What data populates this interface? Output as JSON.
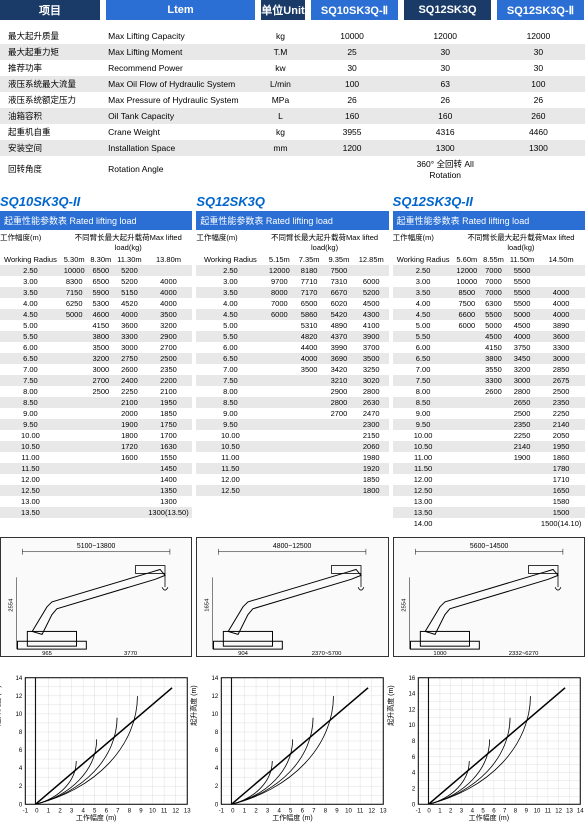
{
  "header": {
    "cells": [
      {
        "label": "项目",
        "bg": "dark",
        "w": 100
      },
      {
        "label": "",
        "bg": "gap",
        "w": 6
      },
      {
        "label": "Ltem",
        "bg": "blue",
        "w": 149
      },
      {
        "label": "",
        "bg": "gap",
        "w": 6
      },
      {
        "label": "单位Unit",
        "bg": "dark",
        "w": 44
      },
      {
        "label": "",
        "bg": "gap",
        "w": 6
      },
      {
        "label": "SQ10SK3Q-Ⅱ",
        "bg": "blue",
        "w": 87
      },
      {
        "label": "",
        "bg": "gap",
        "w": 6
      },
      {
        "label": "SQ12SK3Q",
        "bg": "dark",
        "w": 87
      },
      {
        "label": "",
        "bg": "gap",
        "w": 6
      },
      {
        "label": "SQ12SK3Q-Ⅱ",
        "bg": "blue",
        "w": 87
      }
    ]
  },
  "spec": {
    "rows": [
      {
        "cn": "最大起升质量",
        "en": "Max Lifting Capacity",
        "u": "kg",
        "v1": "10000",
        "v2": "12000",
        "v3": "12000"
      },
      {
        "cn": "最大起重力矩",
        "en": "Max Lifting Moment",
        "u": "T.M",
        "v1": "25",
        "v2": "30",
        "v3": "30"
      },
      {
        "cn": "推荐功率",
        "en": "Recommend Power",
        "u": "kw",
        "v1": "30",
        "v2": "30",
        "v3": "30"
      },
      {
        "cn": "液压系统最大流量",
        "en": "Max Oil Flow of Hydraulic System",
        "u": "L/min",
        "v1": "100",
        "v2": "63",
        "v3": "100"
      },
      {
        "cn": "液压系统额定压力",
        "en": "Max Pressure of Hydraulic System",
        "u": "MPa",
        "v1": "26",
        "v2": "26",
        "v3": "26"
      },
      {
        "cn": "油箱容积",
        "en": "Oil Tank Capacity",
        "u": "L",
        "v1": "160",
        "v2": "160",
        "v3": "260"
      },
      {
        "cn": "起重机自重",
        "en": "Crane Weight",
        "u": "kg",
        "v1": "3955",
        "v2": "4316",
        "v3": "4460"
      },
      {
        "cn": "安装空间",
        "en": "Installation Space",
        "u": "mm",
        "v1": "1200",
        "v2": "1300",
        "v3": "1300"
      },
      {
        "cn": "回转角度",
        "en": "Rotation Angle",
        "u": "",
        "v1": "",
        "v2": "360° 全回转 All Rotation",
        "v3": ""
      }
    ]
  },
  "models": [
    {
      "title": "SQ10SK3Q-II",
      "loadHeader": "起重性能参数表 Rated lifting load",
      "subL": "工作幅度(m)",
      "subR": "不同臂长最大起升载荷Max lifted load(kg)",
      "wr": "Working Radius",
      "cols": [
        "5.30m",
        "8.30m",
        "11.30m",
        "13.80m"
      ],
      "rows": [
        [
          "2.50",
          "10000",
          "6500",
          "5200",
          ""
        ],
        [
          "3.00",
          "8300",
          "6500",
          "5200",
          "4000"
        ],
        [
          "3.50",
          "7150",
          "5900",
          "5150",
          "4000"
        ],
        [
          "4.00",
          "6250",
          "5300",
          "4520",
          "4000"
        ],
        [
          "4.50",
          "5000",
          "4600",
          "4000",
          "3500"
        ],
        [
          "5.00",
          "",
          "4150",
          "3600",
          "3200"
        ],
        [
          "5.50",
          "",
          "3800",
          "3300",
          "2900"
        ],
        [
          "6.00",
          "",
          "3500",
          "3000",
          "2700"
        ],
        [
          "6.50",
          "",
          "3200",
          "2750",
          "2500"
        ],
        [
          "7.00",
          "",
          "3000",
          "2600",
          "2350"
        ],
        [
          "7.50",
          "",
          "2700",
          "2400",
          "2200"
        ],
        [
          "8.00",
          "",
          "2500",
          "2250",
          "2100"
        ],
        [
          "8.50",
          "",
          "",
          "2100",
          "1950"
        ],
        [
          "9.00",
          "",
          "",
          "2000",
          "1850"
        ],
        [
          "9.50",
          "",
          "",
          "1900",
          "1750"
        ],
        [
          "10.00",
          "",
          "",
          "1800",
          "1700"
        ],
        [
          "10.50",
          "",
          "",
          "1720",
          "1630"
        ],
        [
          "11.00",
          "",
          "",
          "1600",
          "1550"
        ],
        [
          "11.50",
          "",
          "",
          "",
          "1450"
        ],
        [
          "12.00",
          "",
          "",
          "",
          "1400"
        ],
        [
          "12.50",
          "",
          "",
          "",
          "1350"
        ],
        [
          "13.00",
          "",
          "",
          "",
          "1300"
        ],
        [
          "13.50",
          "",
          "",
          "",
          "1300(13.50)"
        ]
      ]
    },
    {
      "title": "SQ12SK3Q",
      "loadHeader": "起重性能参数表 Rated lifting load",
      "subL": "工作幅度(m)",
      "subR": "不同臂长最大起升载荷Max lifted load(kg)",
      "wr": "Working Radius",
      "cols": [
        "5.15m",
        "7.35m",
        "9.35m",
        "12.85m"
      ],
      "rows": [
        [
          "2.50",
          "12000",
          "8180",
          "7500",
          ""
        ],
        [
          "3.00",
          "9700",
          "7710",
          "7310",
          "6000"
        ],
        [
          "3.50",
          "8000",
          "7170",
          "6670",
          "5200"
        ],
        [
          "4.00",
          "7000",
          "6500",
          "6020",
          "4500"
        ],
        [
          "4.50",
          "6000",
          "5860",
          "5420",
          "4300"
        ],
        [
          "5.00",
          "",
          "5310",
          "4890",
          "4100"
        ],
        [
          "5.50",
          "",
          "4820",
          "4370",
          "3900"
        ],
        [
          "6.00",
          "",
          "4400",
          "3990",
          "3700"
        ],
        [
          "6.50",
          "",
          "4000",
          "3690",
          "3500"
        ],
        [
          "7.00",
          "",
          "3500",
          "3420",
          "3250"
        ],
        [
          "7.50",
          "",
          "",
          "3210",
          "3020"
        ],
        [
          "8.00",
          "",
          "",
          "2900",
          "2800"
        ],
        [
          "8.50",
          "",
          "",
          "2800",
          "2630"
        ],
        [
          "9.00",
          "",
          "",
          "2700",
          "2470"
        ],
        [
          "9.50",
          "",
          "",
          "",
          "2300"
        ],
        [
          "10.00",
          "",
          "",
          "",
          "2150"
        ],
        [
          "10.50",
          "",
          "",
          "",
          "2060"
        ],
        [
          "11.00",
          "",
          "",
          "",
          "1980"
        ],
        [
          "11.50",
          "",
          "",
          "",
          "1920"
        ],
        [
          "12.00",
          "",
          "",
          "",
          "1850"
        ],
        [
          "12.50",
          "",
          "",
          "",
          "1800"
        ]
      ]
    },
    {
      "title": "SQ12SK3Q-II",
      "loadHeader": "起重性能参数表 Rated lifting load",
      "subL": "工作幅度(m)",
      "subR": "不同臂长最大起升载荷Max lifted load(kg)",
      "wr": "Working Radius",
      "cols": [
        "5.60m",
        "8.55m",
        "11.50m",
        "14.50m"
      ],
      "rows": [
        [
          "2.50",
          "12000",
          "7000",
          "5500",
          ""
        ],
        [
          "3.00",
          "10000",
          "7000",
          "5500",
          ""
        ],
        [
          "3.50",
          "8500",
          "7000",
          "5500",
          "4000"
        ],
        [
          "4.00",
          "7500",
          "6300",
          "5500",
          "4000"
        ],
        [
          "4.50",
          "6600",
          "5500",
          "5000",
          "4000"
        ],
        [
          "5.00",
          "6000",
          "5000",
          "4500",
          "3890"
        ],
        [
          "5.50",
          "",
          "4500",
          "4000",
          "3600"
        ],
        [
          "6.00",
          "",
          "4150",
          "3750",
          "3300"
        ],
        [
          "6.50",
          "",
          "3800",
          "3450",
          "3000"
        ],
        [
          "7.00",
          "",
          "3550",
          "3200",
          "2850"
        ],
        [
          "7.50",
          "",
          "3300",
          "3000",
          "2675"
        ],
        [
          "8.00",
          "",
          "2600",
          "2800",
          "2500"
        ],
        [
          "8.50",
          "",
          "",
          "2650",
          "2350"
        ],
        [
          "9.00",
          "",
          "",
          "2500",
          "2250"
        ],
        [
          "9.50",
          "",
          "",
          "2350",
          "2140"
        ],
        [
          "10.00",
          "",
          "",
          "2250",
          "2050"
        ],
        [
          "10.50",
          "",
          "",
          "2140",
          "1950"
        ],
        [
          "11.00",
          "",
          "",
          "1900",
          "1860"
        ],
        [
          "11.50",
          "",
          "",
          "",
          "1780"
        ],
        [
          "12.00",
          "",
          "",
          "",
          "1710"
        ],
        [
          "12.50",
          "",
          "",
          "",
          "1650"
        ],
        [
          "13.00",
          "",
          "",
          "",
          "1580"
        ],
        [
          "13.50",
          "",
          "",
          "",
          "1500"
        ],
        [
          "14.00",
          "",
          "",
          "",
          "1500(14.10)"
        ]
      ]
    }
  ],
  "diagrams": [
    {
      "topDim": "5100~13800",
      "h": "2554",
      "base": "965",
      "baseR": "3770"
    },
    {
      "topDim": "4800~12500",
      "h": "1654",
      "base": "904",
      "baseR": "2370~5700"
    },
    {
      "topDim": "5600~14500",
      "h": "2554",
      "base": "1000",
      "baseR": "2332~6270"
    }
  ],
  "charts": [
    {
      "xmax": 13,
      "ymax": 14,
      "xticks": [
        -1,
        0,
        1,
        2,
        3,
        4,
        5,
        6,
        7,
        8,
        9,
        10,
        11,
        12,
        13
      ],
      "ylabel": "起升高度 (m)",
      "xlabel": "工作幅度 (m)"
    },
    {
      "xmax": 13,
      "ymax": 14,
      "xticks": [
        -1,
        0,
        1,
        2,
        3,
        4,
        5,
        6,
        7,
        8,
        9,
        10,
        11,
        12,
        13
      ],
      "ylabel": "起升高度 (m)",
      "xlabel": "工作幅度 (m)"
    },
    {
      "xmax": 14,
      "ymax": 16,
      "xticks": [
        -1,
        0,
        2,
        4,
        6,
        8,
        10,
        12,
        14
      ],
      "ylabel": "起升高度 (m)",
      "xlabel": "工作幅度 (m)"
    }
  ]
}
